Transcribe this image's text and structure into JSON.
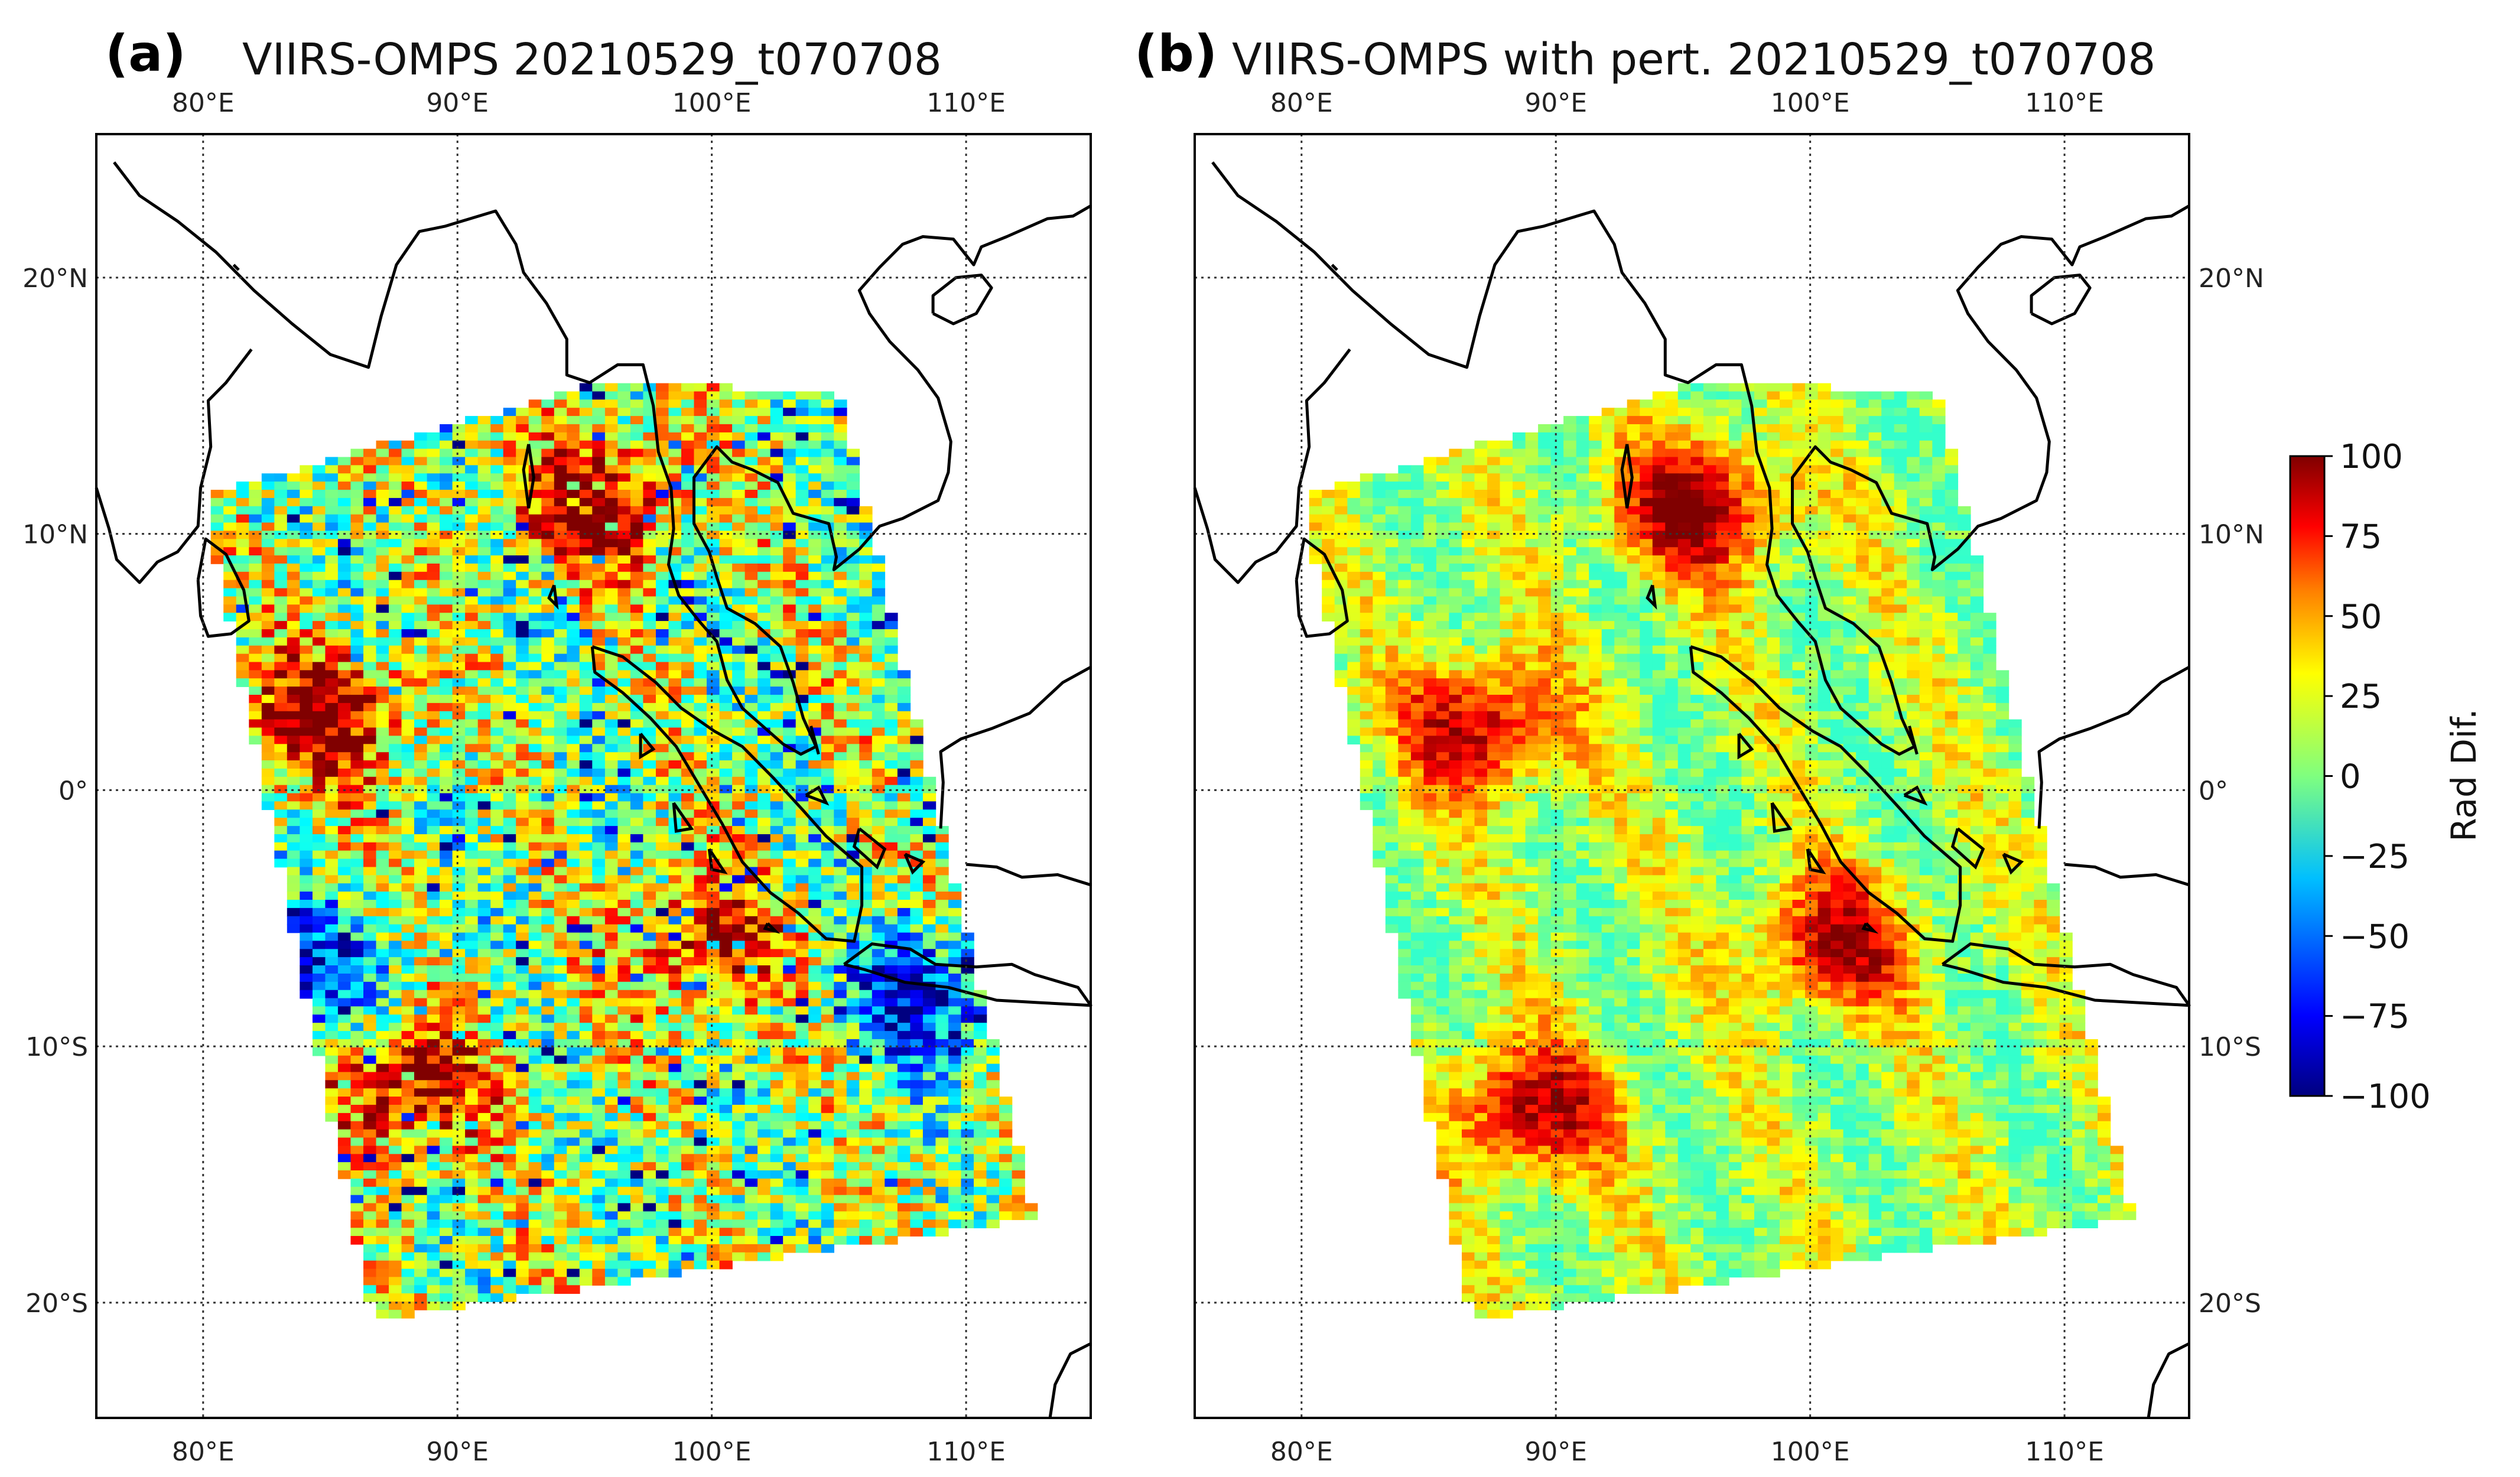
{
  "figure": {
    "colorbar": {
      "label": "Rad Dif.",
      "min": -100,
      "max": 100,
      "ticks": [
        "100",
        "75",
        "50",
        "25",
        "0",
        "−25",
        "−50",
        "−75",
        "−100"
      ],
      "colormap": "jet",
      "colors": [
        "#00007f",
        "#0000ff",
        "#007fff",
        "#00ffff",
        "#7fff7f",
        "#ffff00",
        "#ff7f00",
        "#ff0000",
        "#7f0000"
      ]
    },
    "panels": [
      {
        "tag": "(a)",
        "title": "VIIRS-OMPS 20210529_t070708",
        "lon_ticks": [
          "80°E",
          "90°E",
          "100°E",
          "110°E"
        ],
        "lat_ticks": [
          "20°N",
          "10°N",
          "0°",
          "10°S",
          "20°S"
        ],
        "lat_labels_side": "left"
      },
      {
        "tag": "(b)",
        "title": "VIIRS-OMPS with pert. 20210529_t070708",
        "lon_ticks": [
          "80°E",
          "90°E",
          "100°E",
          "110°E"
        ],
        "lat_ticks": [
          "20°N",
          "10°N",
          "0°",
          "10°S",
          "20°S"
        ],
        "lat_labels_side": "right"
      }
    ],
    "map": {
      "lon_min": 75.8,
      "lon_max": 114.9,
      "lat_min": -24.5,
      "lat_max": 25.6,
      "grid_lons": [
        80,
        90,
        100,
        110
      ],
      "grid_lats": [
        20,
        10,
        0,
        -10,
        -20
      ]
    },
    "chart_data": {
      "type": "heatmap",
      "description_values": "radiance difference field over the swath (approximate)",
      "value_range": [
        -100,
        100
      ],
      "lon_range": [
        75.8,
        114.9
      ],
      "lat_range": [
        -24.5,
        25.6
      ],
      "swath_corners_lonlat": [
        [
          80.0,
          11.5
        ],
        [
          96.0,
          16.0
        ],
        [
          105.0,
          15.5
        ],
        [
          112.7,
          -16.7
        ],
        [
          86.7,
          -20.7
        ]
      ],
      "hotspots": [
        {
          "panel": "a",
          "lon": 95.5,
          "lat": 11.0,
          "value": 100
        },
        {
          "panel": "a",
          "lon": 85.0,
          "lat": 3.0,
          "value": 95
        },
        {
          "panel": "a",
          "lon": 100.0,
          "lat": -6.0,
          "value": 85
        },
        {
          "panel": "a",
          "lon": 88.0,
          "lat": -11.5,
          "value": 95
        },
        {
          "panel": "a",
          "lon": 84.5,
          "lat": -7.0,
          "value": -70
        },
        {
          "panel": "a",
          "lon": 108.5,
          "lat": -8.0,
          "value": -85
        },
        {
          "panel": "b",
          "lon": 95.5,
          "lat": 11.0,
          "value": 100
        },
        {
          "panel": "b",
          "lon": 87.0,
          "lat": 2.5,
          "value": 90
        },
        {
          "panel": "b",
          "lon": 101.0,
          "lat": -6.0,
          "value": 85
        },
        {
          "panel": "b",
          "lon": 89.0,
          "lat": -12.5,
          "value": 90
        }
      ]
    }
  }
}
